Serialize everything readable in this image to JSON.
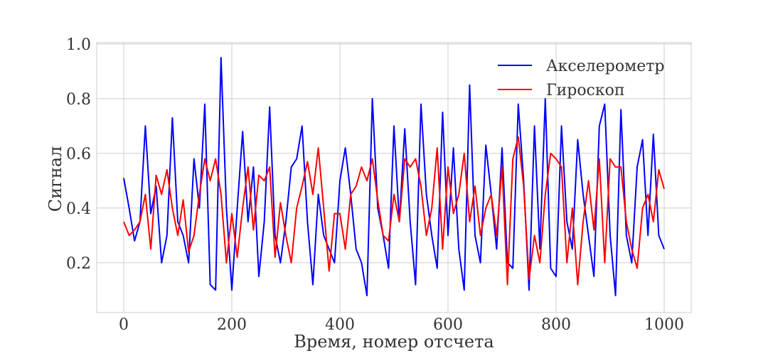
{
  "chart_data": {
    "type": "line",
    "x_label": "Время, номер отсчета",
    "y_label": "Сигнал",
    "x": [
      0,
      10,
      20,
      30,
      40,
      50,
      60,
      70,
      80,
      90,
      100,
      110,
      120,
      130,
      140,
      150,
      160,
      170,
      180,
      190,
      200,
      210,
      220,
      230,
      240,
      250,
      260,
      270,
      280,
      290,
      300,
      310,
      320,
      330,
      340,
      350,
      360,
      370,
      380,
      390,
      400,
      410,
      420,
      430,
      440,
      450,
      460,
      470,
      480,
      490,
      500,
      510,
      520,
      530,
      540,
      550,
      560,
      570,
      580,
      590,
      600,
      610,
      620,
      630,
      640,
      650,
      660,
      670,
      680,
      690,
      700,
      710,
      720,
      730,
      740,
      750,
      760,
      770,
      780,
      790,
      800,
      810,
      820,
      830,
      840,
      850,
      860,
      870,
      880,
      890,
      900,
      910,
      920,
      930,
      940,
      950,
      960,
      970,
      980,
      990,
      1000
    ],
    "series": [
      {
        "name": "Акселерометр",
        "color": "#0000ff",
        "values": [
          0.51,
          0.4,
          0.28,
          0.35,
          0.7,
          0.38,
          0.48,
          0.2,
          0.3,
          0.73,
          0.35,
          0.3,
          0.2,
          0.58,
          0.4,
          0.78,
          0.12,
          0.1,
          0.95,
          0.4,
          0.1,
          0.4,
          0.68,
          0.35,
          0.55,
          0.15,
          0.35,
          0.77,
          0.3,
          0.2,
          0.35,
          0.55,
          0.58,
          0.7,
          0.35,
          0.12,
          0.45,
          0.3,
          0.25,
          0.2,
          0.5,
          0.62,
          0.45,
          0.25,
          0.2,
          0.08,
          0.8,
          0.4,
          0.3,
          0.18,
          0.7,
          0.35,
          0.69,
          0.35,
          0.12,
          0.78,
          0.45,
          0.3,
          0.18,
          0.75,
          0.3,
          0.62,
          0.25,
          0.1,
          0.85,
          0.3,
          0.2,
          0.63,
          0.45,
          0.25,
          0.62,
          0.2,
          0.18,
          0.78,
          0.5,
          0.1,
          0.7,
          0.25,
          0.8,
          0.18,
          0.15,
          0.7,
          0.35,
          0.25,
          0.65,
          0.45,
          0.3,
          0.15,
          0.7,
          0.78,
          0.3,
          0.08,
          0.76,
          0.3,
          0.2,
          0.55,
          0.65,
          0.3,
          0.67,
          0.3,
          0.25
        ]
      },
      {
        "name": "Гироскоп",
        "color": "#ff0000",
        "values": [
          0.35,
          0.3,
          0.32,
          0.35,
          0.45,
          0.25,
          0.52,
          0.45,
          0.54,
          0.4,
          0.3,
          0.43,
          0.24,
          0.3,
          0.45,
          0.58,
          0.5,
          0.58,
          0.45,
          0.2,
          0.38,
          0.22,
          0.4,
          0.55,
          0.32,
          0.52,
          0.5,
          0.55,
          0.22,
          0.42,
          0.3,
          0.2,
          0.4,
          0.48,
          0.57,
          0.45,
          0.62,
          0.4,
          0.17,
          0.38,
          0.38,
          0.25,
          0.45,
          0.48,
          0.55,
          0.5,
          0.58,
          0.43,
          0.3,
          0.28,
          0.45,
          0.35,
          0.58,
          0.55,
          0.58,
          0.48,
          0.3,
          0.4,
          0.62,
          0.25,
          0.55,
          0.38,
          0.45,
          0.6,
          0.35,
          0.48,
          0.3,
          0.4,
          0.45,
          0.3,
          0.55,
          0.12,
          0.58,
          0.66,
          0.48,
          0.14,
          0.3,
          0.2,
          0.45,
          0.6,
          0.58,
          0.55,
          0.2,
          0.4,
          0.12,
          0.35,
          0.5,
          0.32,
          0.58,
          0.2,
          0.58,
          0.55,
          0.55,
          0.35,
          0.25,
          0.18,
          0.4,
          0.45,
          0.35,
          0.54,
          0.47
        ]
      }
    ],
    "xlim": [
      -50,
      1050
    ],
    "ylim": [
      0.018,
      1.005
    ],
    "xticks": [
      0,
      200,
      400,
      600,
      800,
      1000
    ],
    "yticks": [
      0.2,
      0.4,
      0.6,
      0.8,
      {
        "value": 1,
        "label": "1.0"
      }
    ],
    "grid": true,
    "legend": "upper right"
  }
}
